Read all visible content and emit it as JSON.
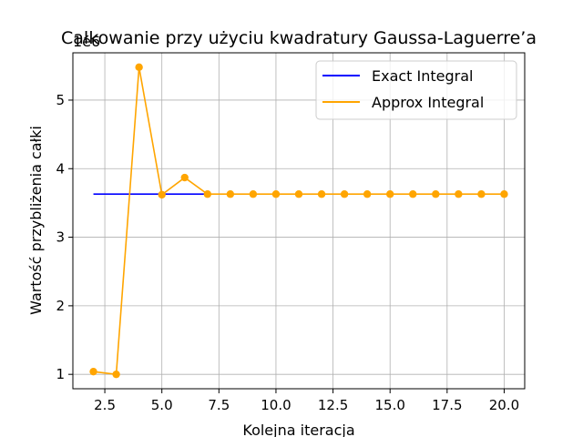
{
  "chart_data": {
    "type": "line",
    "title": "Całkowanie przy użyciu kwadratury Gaussa-Laguerre’a",
    "xlabel": "Kolejna iteracja",
    "ylabel": "Wartość przybliżenia całki",
    "y_offset_label": "1e6",
    "xlim": [
      1.1,
      20.9
    ],
    "ylim": [
      0.79,
      5.69
    ],
    "y_scale_factor": 1000000,
    "grid": true,
    "legend_position": "upper right",
    "x_ticks": [
      2.5,
      5.0,
      7.5,
      10.0,
      12.5,
      15.0,
      17.5,
      20.0
    ],
    "x_tick_labels": [
      "2.5",
      "5.0",
      "7.5",
      "10.0",
      "12.5",
      "15.0",
      "17.5",
      "20.0"
    ],
    "y_ticks": [
      1,
      2,
      3,
      4,
      5
    ],
    "y_tick_labels": [
      "1",
      "2",
      "3",
      "4",
      "5"
    ],
    "series": [
      {
        "name": "Exact Integral",
        "color": "#0000ff",
        "marker": "none",
        "x": [
          2,
          3,
          4,
          5,
          6,
          7
        ],
        "y": [
          3.6288,
          3.6288,
          3.6288,
          3.6288,
          3.6288,
          3.6288
        ]
      },
      {
        "name": "Approx Integral",
        "color": "#ffa500",
        "marker": "circle",
        "x": [
          2,
          3,
          4,
          5,
          6,
          7,
          8,
          9,
          10,
          11,
          12,
          13,
          14,
          15,
          16,
          17,
          18,
          19,
          20
        ],
        "y": [
          1.04,
          1.0,
          5.48,
          3.62,
          3.87,
          3.6288,
          3.6288,
          3.6288,
          3.6288,
          3.6288,
          3.6288,
          3.6288,
          3.6288,
          3.6288,
          3.6288,
          3.6288,
          3.6288,
          3.6288,
          3.6288
        ]
      }
    ]
  }
}
